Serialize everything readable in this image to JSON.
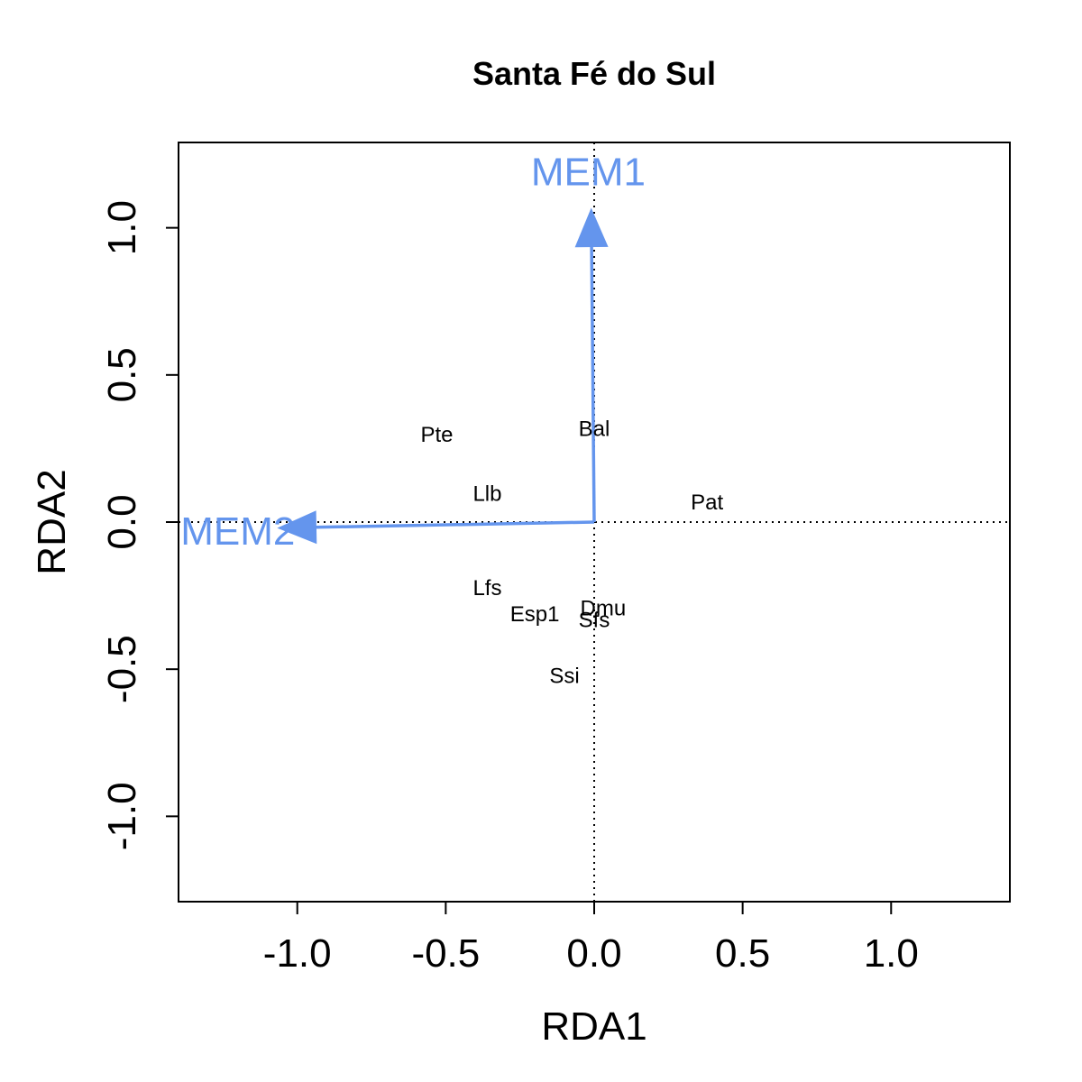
{
  "chart_data": {
    "type": "scatter",
    "title": "Santa Fé do Sul",
    "xlabel": "RDA1",
    "ylabel": "RDA2",
    "xlim": [
      -1.4,
      1.4
    ],
    "ylim": [
      -1.29,
      1.29
    ],
    "xticks": [
      -1.0,
      -0.5,
      0.0,
      0.5,
      1.0
    ],
    "xtick_labels": [
      "-1.0",
      "-0.5",
      "0.0",
      "0.5",
      "1.0"
    ],
    "yticks": [
      -1.0,
      -0.5,
      0.0,
      0.5,
      1.0
    ],
    "ytick_labels": [
      "-1.0",
      "-0.5",
      "0.0",
      "0.5",
      "1.0"
    ],
    "reference_lines": {
      "x": 0,
      "y": 0,
      "style": "dotted"
    },
    "species": [
      {
        "label": "Pte",
        "x": -0.53,
        "y": 0.3
      },
      {
        "label": "Bal",
        "x": 0.0,
        "y": 0.32
      },
      {
        "label": "Llb",
        "x": -0.36,
        "y": 0.1
      },
      {
        "label": "Pat",
        "x": 0.38,
        "y": 0.07
      },
      {
        "label": "Lfs",
        "x": -0.36,
        "y": -0.22
      },
      {
        "label": "Esp1",
        "x": -0.2,
        "y": -0.31
      },
      {
        "label": "Dmu",
        "x": 0.03,
        "y": -0.29
      },
      {
        "label": "Sfs",
        "x": 0.0,
        "y": -0.33
      },
      {
        "label": "Ssi",
        "x": -0.1,
        "y": -0.52
      }
    ],
    "vectors": [
      {
        "label": "MEM1",
        "x": -0.01,
        "y": 1.06,
        "label_x": -0.02,
        "label_y": 1.19
      },
      {
        "label": "MEM2",
        "x": -1.06,
        "y": -0.02,
        "label_x": -1.2,
        "label_y": -0.03
      }
    ],
    "vector_color": "#6495ED"
  }
}
